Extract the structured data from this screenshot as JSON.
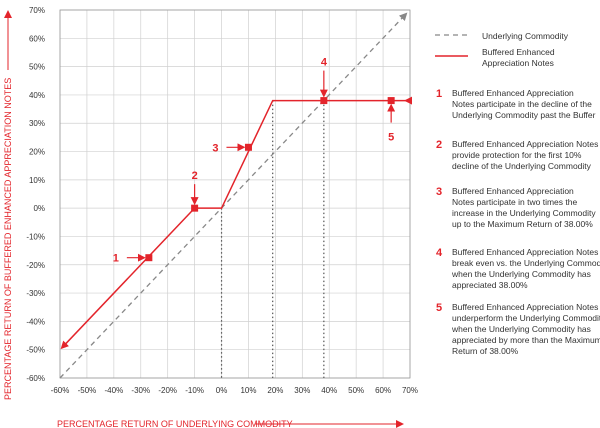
{
  "colors": {
    "accent": "#e3242b",
    "dashed": "#888888",
    "grid": "#d0d0d0",
    "text": "#333333"
  },
  "chart_data": {
    "type": "line",
    "xlabel": "PERCENTAGE RETURN OF UNDERLYING COMMODITY",
    "ylabel": "PERCENTAGE RETURN OF BUFFERED ENHANCED APPRECIATION NOTES",
    "xlim": [
      -60,
      70
    ],
    "ylim": [
      -60,
      70
    ],
    "x_ticks": [
      "-60%",
      "-50%",
      "-40%",
      "-30%",
      "-20%",
      "-10%",
      "0%",
      "10%",
      "20%",
      "30%",
      "40%",
      "50%",
      "60%",
      "70%"
    ],
    "y_ticks": [
      "70%",
      "60%",
      "50%",
      "40%",
      "30%",
      "20%",
      "10%",
      "0%",
      "-10%",
      "-20%",
      "-30%",
      "-40%",
      "-50%",
      "-60%"
    ],
    "grid": true,
    "legend_position": "right",
    "series": [
      {
        "name": "Underlying Commodity",
        "style": "dashed",
        "x": [
          -60,
          70
        ],
        "y": [
          -60,
          70
        ]
      },
      {
        "name": "Buffered Enhanced Appreciation Notes",
        "style": "solid",
        "x": [
          -60,
          -10,
          0,
          19,
          70
        ],
        "y": [
          -50,
          0,
          0,
          38,
          38
        ]
      }
    ],
    "markers": [
      {
        "label": "1",
        "x": -27,
        "y": -17.5
      },
      {
        "label": "2",
        "x": -10,
        "y": 0
      },
      {
        "label": "3",
        "x": 10,
        "y": 21.5
      },
      {
        "label": "4",
        "x": 38,
        "y": 38
      },
      {
        "label": "5",
        "x": 63,
        "y": 38
      }
    ],
    "dotted_verticals": [
      0,
      19,
      38
    ]
  },
  "legend": {
    "items": [
      {
        "label_lines": [
          "Underlying Commodity"
        ]
      },
      {
        "label_lines": [
          "Buffered Enhanced",
          "Appreciation Notes"
        ]
      }
    ]
  },
  "annotations": [
    {
      "num": "1",
      "lines": [
        "Buffered Enhanced Appreciation",
        "Notes participate in the decline of the",
        "Underlying Commodity past the Buffer"
      ]
    },
    {
      "num": "2",
      "lines": [
        "Buffered Enhanced Appreciation Notes",
        "provide protection for the first 10%",
        "decline of the Underlying Commodity"
      ]
    },
    {
      "num": "3",
      "lines": [
        "Buffered Enhanced Appreciation",
        "Notes participate in two times the",
        "increase in the Underlying Commodity",
        "up to the Maximum Return of 38.00%"
      ]
    },
    {
      "num": "4",
      "lines": [
        "Buffered Enhanced Appreciation Notes",
        "break even vs. the Underlying Commodity",
        "when the Underlying Commodity has",
        "appreciated 38.00%"
      ]
    },
    {
      "num": "5",
      "lines": [
        "Buffered Enhanced Appreciation Notes",
        "underperform the Underlying Commodity",
        "when the Underlying Commodity has",
        "appreciated by more than the Maximum",
        "Return of 38.00%"
      ]
    }
  ]
}
